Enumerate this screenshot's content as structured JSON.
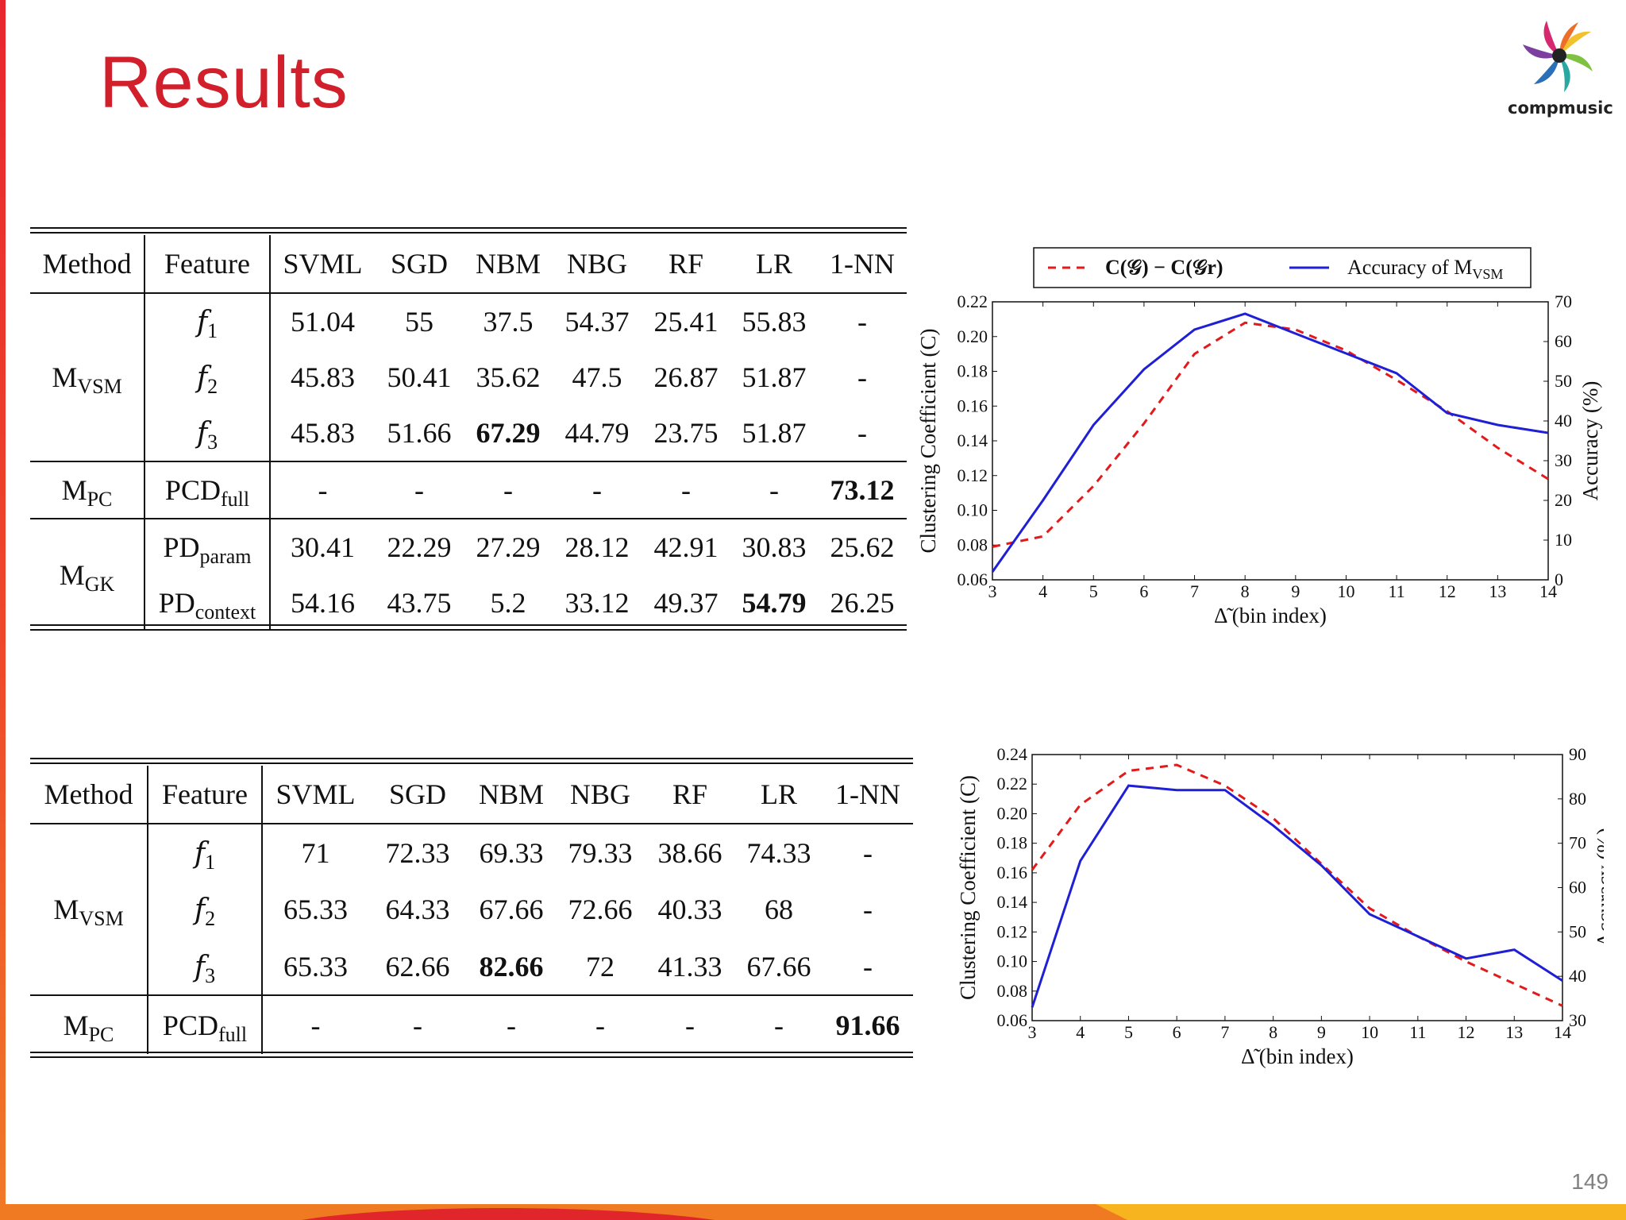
{
  "slide": {
    "title": "Results",
    "logo_text": "compmusic",
    "page_number": "149",
    "colors": {
      "title": "#d11f2c",
      "series_red": "#e31a1c",
      "series_blue": "#1f1fd6"
    }
  },
  "table1": {
    "columns": [
      "Method",
      "Feature",
      "SVML",
      "SGD",
      "NBM",
      "NBG",
      "RF",
      "LR",
      "1-NN"
    ],
    "groups": [
      {
        "method": "M",
        "method_sub": "VSM",
        "rows": [
          {
            "feature": "f",
            "feature_sub": "1",
            "values": [
              "51.04",
              "55",
              "37.5",
              "54.37",
              "25.41",
              "55.83",
              "-"
            ]
          },
          {
            "feature": "f",
            "feature_sub": "2",
            "values": [
              "45.83",
              "50.41",
              "35.62",
              "47.5",
              "26.87",
              "51.87",
              "-"
            ]
          },
          {
            "feature": "f",
            "feature_sub": "3",
            "values": [
              "45.83",
              "51.66",
              "67.29",
              "44.79",
              "23.75",
              "51.87",
              "-"
            ]
          }
        ]
      },
      {
        "method": "M",
        "method_sub": "PC",
        "rows": [
          {
            "feature": "PCD",
            "feature_sub": "full",
            "values": [
              "-",
              "-",
              "-",
              "-",
              "-",
              "-",
              "73.12"
            ]
          }
        ]
      },
      {
        "method": "M",
        "method_sub": "GK",
        "rows": [
          {
            "feature": "PD",
            "feature_sub": "param",
            "values": [
              "30.41",
              "22.29",
              "27.29",
              "28.12",
              "42.91",
              "30.83",
              "25.62"
            ]
          },
          {
            "feature": "PD",
            "feature_sub": "context",
            "values": [
              "54.16",
              "43.75",
              "5.2",
              "33.12",
              "49.37",
              "54.79",
              "26.25"
            ]
          }
        ]
      }
    ],
    "bold": [
      "67.29",
      "73.12",
      "54.79"
    ]
  },
  "table2": {
    "columns": [
      "Method",
      "Feature",
      "SVML",
      "SGD",
      "NBM",
      "NBG",
      "RF",
      "LR",
      "1-NN"
    ],
    "groups": [
      {
        "method": "M",
        "method_sub": "VSM",
        "rows": [
          {
            "feature": "f",
            "feature_sub": "1",
            "values": [
              "71",
              "72.33",
              "69.33",
              "79.33",
              "38.66",
              "74.33",
              "-"
            ]
          },
          {
            "feature": "f",
            "feature_sub": "2",
            "values": [
              "65.33",
              "64.33",
              "67.66",
              "72.66",
              "40.33",
              "68",
              "-"
            ]
          },
          {
            "feature": "f",
            "feature_sub": "3",
            "values": [
              "65.33",
              "62.66",
              "82.66",
              "72",
              "41.33",
              "67.66",
              "-"
            ]
          }
        ]
      },
      {
        "method": "M",
        "method_sub": "PC",
        "rows": [
          {
            "feature": "PCD",
            "feature_sub": "full",
            "values": [
              "-",
              "-",
              "-",
              "-",
              "-",
              "-",
              "91.66"
            ]
          }
        ]
      }
    ],
    "bold": [
      "82.66",
      "91.66"
    ]
  },
  "chart_data": [
    {
      "type": "line",
      "title": "",
      "xlabel": "Δ̃ (bin index)",
      "ylabel": "Clustering Coefficient (C)",
      "y2label": "Accuracy (%)",
      "x": [
        3,
        4,
        5,
        6,
        7,
        8,
        9,
        10,
        11,
        12,
        13,
        14
      ],
      "xlim": [
        3,
        14
      ],
      "ylim": [
        0.06,
        0.22
      ],
      "y2lim": [
        0,
        70
      ],
      "yticks": [
        "0.06",
        "0.08",
        "0.10",
        "0.12",
        "0.14",
        "0.16",
        "0.18",
        "0.20",
        "0.22"
      ],
      "y2ticks": [
        "0",
        "10",
        "20",
        "30",
        "40",
        "50",
        "60",
        "70"
      ],
      "legend": [
        "C(𝒢) − C(𝒢r)",
        "Accuracy of M"
      ],
      "legend_sub": "VSM",
      "legend_position": "top",
      "series": [
        {
          "name": "C(𝒢) − C(𝒢r)",
          "axis": "left",
          "style": "dashed",
          "values": [
            0.079,
            0.085,
            0.114,
            0.15,
            0.19,
            0.208,
            0.204,
            0.192,
            0.175,
            0.157,
            0.136,
            0.118
          ]
        },
        {
          "name": "Accuracy of M_VSM",
          "axis": "right",
          "style": "solid",
          "values": [
            2,
            20,
            39,
            53,
            63,
            67,
            62,
            57,
            52,
            42,
            39,
            37
          ]
        }
      ]
    },
    {
      "type": "line",
      "title": "",
      "xlabel": "Δ̃ (bin index)",
      "ylabel": "Clustering Coefficient (C)",
      "y2label": "Accuracy (%)",
      "x": [
        3,
        4,
        5,
        6,
        7,
        8,
        9,
        10,
        11,
        12,
        13,
        14
      ],
      "xlim": [
        3,
        14
      ],
      "ylim": [
        0.06,
        0.24
      ],
      "y2lim": [
        30,
        90
      ],
      "yticks": [
        "0.06",
        "0.08",
        "0.10",
        "0.12",
        "0.14",
        "0.16",
        "0.18",
        "0.20",
        "0.22",
        "0.24"
      ],
      "y2ticks": [
        "30",
        "40",
        "50",
        "60",
        "70",
        "80",
        "90"
      ],
      "series": [
        {
          "name": "C(𝒢) − C(𝒢r)",
          "axis": "left",
          "style": "dashed",
          "values": [
            0.162,
            0.206,
            0.229,
            0.233,
            0.219,
            0.197,
            0.166,
            0.136,
            0.117,
            0.1,
            0.085,
            0.07
          ]
        },
        {
          "name": "Accuracy of M_VSM",
          "axis": "right",
          "style": "solid",
          "values": [
            33,
            66,
            83,
            82,
            82,
            74,
            65,
            54,
            49,
            44,
            46,
            39
          ]
        }
      ]
    }
  ]
}
